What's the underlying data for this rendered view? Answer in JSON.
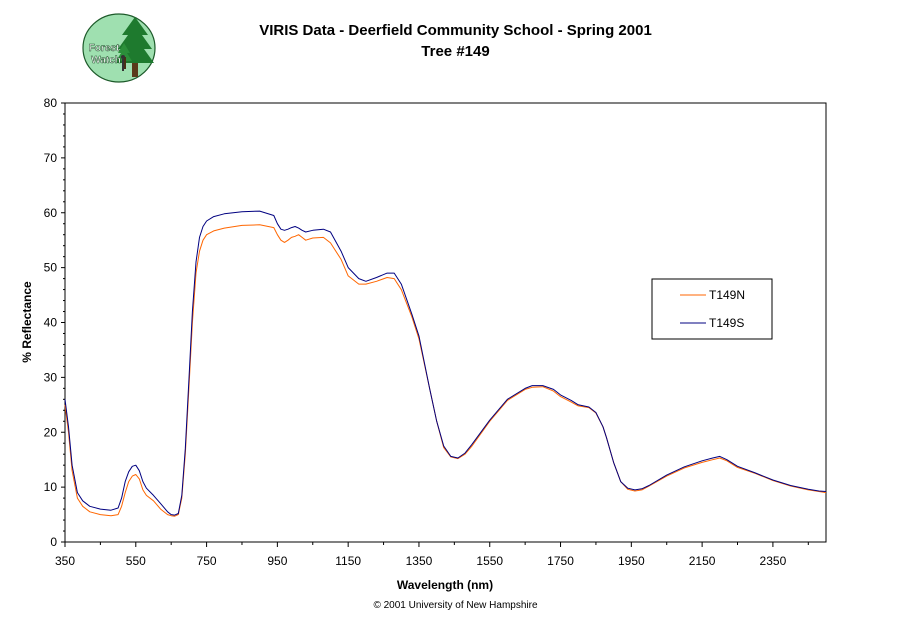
{
  "header": {
    "title": "VIRIS Data - Deerfield Community School - Spring 2001",
    "subtitle": "Tree #149",
    "logo_text_line1": "Forest",
    "logo_text_line2": "Watch"
  },
  "footer": {
    "copyright": "© 2001 University of New Hampshire"
  },
  "colors": {
    "T149N": "#ff6600",
    "T149S": "#000080",
    "plot_border": "#000000",
    "background": "#ffffff"
  },
  "chart_data": {
    "type": "line",
    "title": "VIRIS Data - Deerfield Community School - Spring 2001",
    "subtitle": "Tree #149",
    "xlabel": "Wavelength (nm)",
    "ylabel": "% Reflectance",
    "xlim": [
      350,
      2500
    ],
    "ylim": [
      0,
      80
    ],
    "xticks": [
      350,
      550,
      750,
      950,
      1150,
      1350,
      1550,
      1750,
      1950,
      2150,
      2350
    ],
    "yticks": [
      0,
      10,
      20,
      30,
      40,
      50,
      60,
      70,
      80
    ],
    "grid": false,
    "legend_position": "right",
    "series": [
      {
        "name": "T149N",
        "color": "#ff6600",
        "x": [
          350,
          360,
          370,
          385,
          400,
          420,
          450,
          480,
          500,
          510,
          520,
          530,
          540,
          550,
          560,
          570,
          580,
          600,
          620,
          640,
          650,
          660,
          670,
          680,
          690,
          700,
          710,
          720,
          730,
          740,
          750,
          770,
          800,
          850,
          900,
          940,
          950,
          960,
          970,
          980,
          990,
          1000,
          1010,
          1020,
          1030,
          1050,
          1080,
          1100,
          1130,
          1150,
          1180,
          1200,
          1230,
          1260,
          1280,
          1300,
          1330,
          1350,
          1380,
          1400,
          1420,
          1440,
          1460,
          1480,
          1500,
          1550,
          1600,
          1650,
          1670,
          1700,
          1730,
          1750,
          1780,
          1800,
          1830,
          1850,
          1870,
          1880,
          1900,
          1920,
          1940,
          1960,
          1980,
          2000,
          2050,
          2100,
          2150,
          2180,
          2200,
          2220,
          2250,
          2300,
          2350,
          2400,
          2450,
          2480,
          2500
        ],
        "values": [
          25,
          20,
          13,
          8,
          6.5,
          5.5,
          5,
          4.8,
          5,
          6.5,
          9,
          11,
          12,
          12.3,
          11.5,
          9.5,
          8.5,
          7.5,
          6,
          5,
          4.8,
          4.7,
          5,
          8,
          16,
          28,
          40,
          49,
          53,
          55,
          56,
          56.7,
          57.2,
          57.7,
          57.8,
          57.3,
          56,
          55,
          54.6,
          55,
          55.5,
          55.7,
          56,
          55.5,
          55,
          55.4,
          55.5,
          54.5,
          51.5,
          48.5,
          47,
          47,
          47.5,
          48.2,
          48,
          46,
          41,
          37,
          28,
          22,
          17.2,
          15.5,
          15.2,
          16,
          17.5,
          22,
          25.8,
          27.8,
          28.2,
          28.3,
          27.5,
          26.5,
          25.5,
          24.8,
          24.5,
          23.5,
          21,
          19,
          14.5,
          11,
          9.6,
          9.3,
          9.5,
          10.2,
          12,
          13.5,
          14.5,
          15,
          15.3,
          14.8,
          13.6,
          12.5,
          11.2,
          10.2,
          9.5,
          9.2,
          9
        ]
      },
      {
        "name": "T149S",
        "color": "#000080",
        "x": [
          350,
          360,
          370,
          385,
          400,
          420,
          450,
          480,
          500,
          510,
          520,
          530,
          540,
          550,
          560,
          570,
          580,
          600,
          620,
          640,
          650,
          660,
          670,
          680,
          690,
          700,
          710,
          720,
          730,
          740,
          750,
          770,
          800,
          850,
          900,
          940,
          950,
          960,
          970,
          980,
          990,
          1000,
          1010,
          1020,
          1030,
          1050,
          1080,
          1100,
          1130,
          1150,
          1180,
          1200,
          1230,
          1260,
          1280,
          1300,
          1330,
          1350,
          1380,
          1400,
          1420,
          1440,
          1460,
          1480,
          1500,
          1550,
          1600,
          1650,
          1670,
          1700,
          1730,
          1750,
          1780,
          1800,
          1830,
          1850,
          1870,
          1880,
          1900,
          1920,
          1940,
          1960,
          1980,
          2000,
          2050,
          2100,
          2150,
          2180,
          2200,
          2220,
          2250,
          2300,
          2350,
          2400,
          2450,
          2480,
          2500
        ],
        "values": [
          26,
          21,
          14,
          9,
          7.5,
          6.5,
          6,
          5.8,
          6.2,
          8,
          11,
          12.8,
          13.8,
          14,
          13,
          11,
          9.8,
          8.5,
          7,
          5.5,
          5,
          4.9,
          5.2,
          8.5,
          17,
          29.5,
          42,
          51,
          55.5,
          57.5,
          58.5,
          59.3,
          59.8,
          60.2,
          60.3,
          59.5,
          58,
          57,
          56.8,
          57,
          57.3,
          57.5,
          57.2,
          56.8,
          56.5,
          56.8,
          57,
          56.5,
          53,
          50,
          48,
          47.5,
          48.2,
          49,
          49,
          47,
          41.5,
          37.5,
          28,
          22,
          17.5,
          15.6,
          15.3,
          16.2,
          17.8,
          22.2,
          26,
          28,
          28.5,
          28.5,
          27.8,
          26.8,
          25.8,
          25,
          24.6,
          23.6,
          21,
          19,
          14.5,
          11,
          9.8,
          9.5,
          9.7,
          10.3,
          12.2,
          13.7,
          14.8,
          15.3,
          15.6,
          15,
          13.8,
          12.6,
          11.3,
          10.3,
          9.6,
          9.3,
          9.2
        ]
      }
    ]
  }
}
